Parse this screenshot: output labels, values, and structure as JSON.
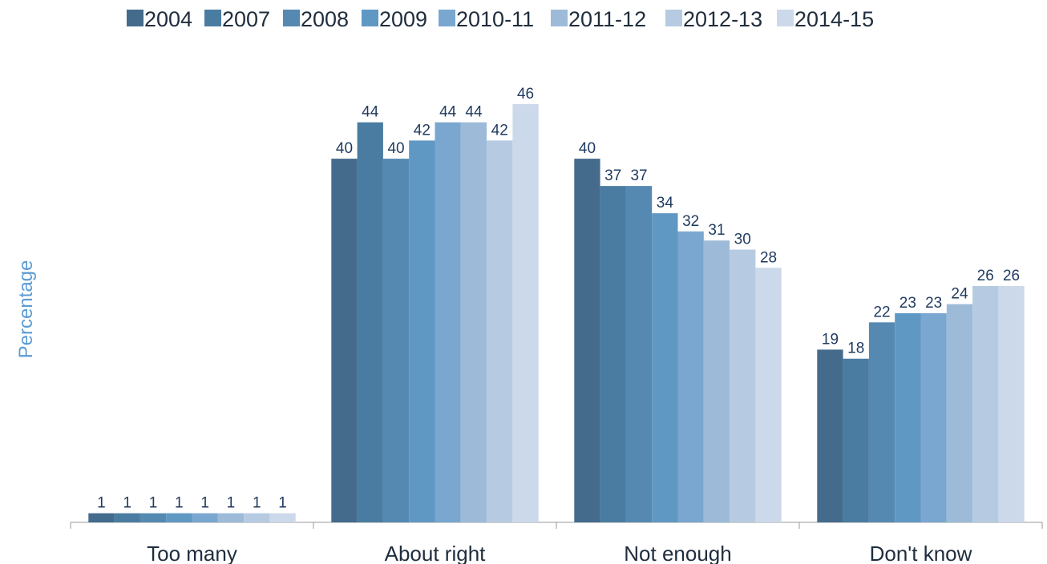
{
  "chart_data": {
    "type": "bar",
    "categories": [
      "Too many",
      "About right",
      "Not enough",
      "Don't know"
    ],
    "series": [
      {
        "name": "2004",
        "color": "#446b8c",
        "values": [
          1,
          40,
          40,
          19
        ]
      },
      {
        "name": "2007",
        "color": "#4a7ca1",
        "values": [
          1,
          44,
          37,
          18
        ]
      },
      {
        "name": "2008",
        "color": "#5589b1",
        "values": [
          1,
          40,
          37,
          22
        ]
      },
      {
        "name": "2009",
        "color": "#6098c4",
        "values": [
          1,
          42,
          34,
          23
        ]
      },
      {
        "name": "2010-11",
        "color": "#7aa7cf",
        "values": [
          1,
          44,
          32,
          23
        ]
      },
      {
        "name": "2011-12",
        "color": "#9dbbd8",
        "values": [
          1,
          44,
          31,
          24
        ]
      },
      {
        "name": "2012-13",
        "color": "#b6cbe1",
        "values": [
          1,
          42,
          30,
          26
        ]
      },
      {
        "name": "2014-15",
        "color": "#ccd9ea",
        "values": [
          1,
          46,
          28,
          26
        ]
      }
    ],
    "ylabel": "Percentage",
    "xlabel": "",
    "ylim": [
      0,
      46
    ],
    "grid": false,
    "legend_position": "top"
  }
}
